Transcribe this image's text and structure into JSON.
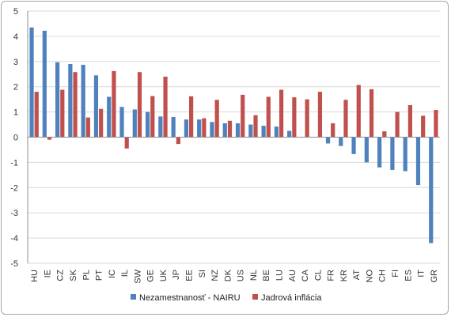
{
  "chart_data": {
    "type": "bar",
    "categories": [
      "HU",
      "IE",
      "CZ",
      "SK",
      "PL",
      "PT",
      "IC",
      "IL",
      "SW",
      "GE",
      "UK",
      "JP",
      "EE",
      "SI",
      "NZ",
      "DK",
      "US",
      "NL",
      "BE",
      "LU",
      "AU",
      "CA",
      "CL",
      "FR",
      "KR",
      "AT",
      "NO",
      "CH",
      "FI",
      "ES",
      "IT",
      "GR"
    ],
    "series": [
      {
        "name": "Nezamestnanosť - NAIRU",
        "color": "#4f81bd",
        "values": [
          4.35,
          4.22,
          2.97,
          2.9,
          2.87,
          2.45,
          1.6,
          1.2,
          1.1,
          1.0,
          0.82,
          0.8,
          0.7,
          0.7,
          0.6,
          0.55,
          0.55,
          0.5,
          0.45,
          0.42,
          0.25,
          0.0,
          0.0,
          -0.25,
          -0.35,
          -0.67,
          -1.0,
          -1.2,
          -1.3,
          -1.35,
          -1.9,
          -4.2
        ]
      },
      {
        "name": "Jadrová inflácia",
        "color": "#c0504d",
        "values": [
          1.8,
          -0.1,
          1.88,
          2.58,
          0.78,
          1.12,
          2.62,
          -0.45,
          2.58,
          1.63,
          2.4,
          -0.27,
          1.62,
          0.75,
          1.48,
          0.65,
          1.68,
          0.87,
          1.6,
          1.88,
          1.58,
          1.5,
          1.8,
          0.55,
          1.48,
          2.07,
          1.9,
          0.23,
          1.0,
          1.27,
          0.85,
          1.08
        ]
      }
    ],
    "yticks": [
      "5",
      "4",
      "3",
      "2",
      "1",
      "0",
      "-1",
      "-2",
      "-3",
      "-4",
      "-5"
    ],
    "ylim": [
      -5,
      5
    ],
    "grid": true,
    "legend": "bottom"
  }
}
